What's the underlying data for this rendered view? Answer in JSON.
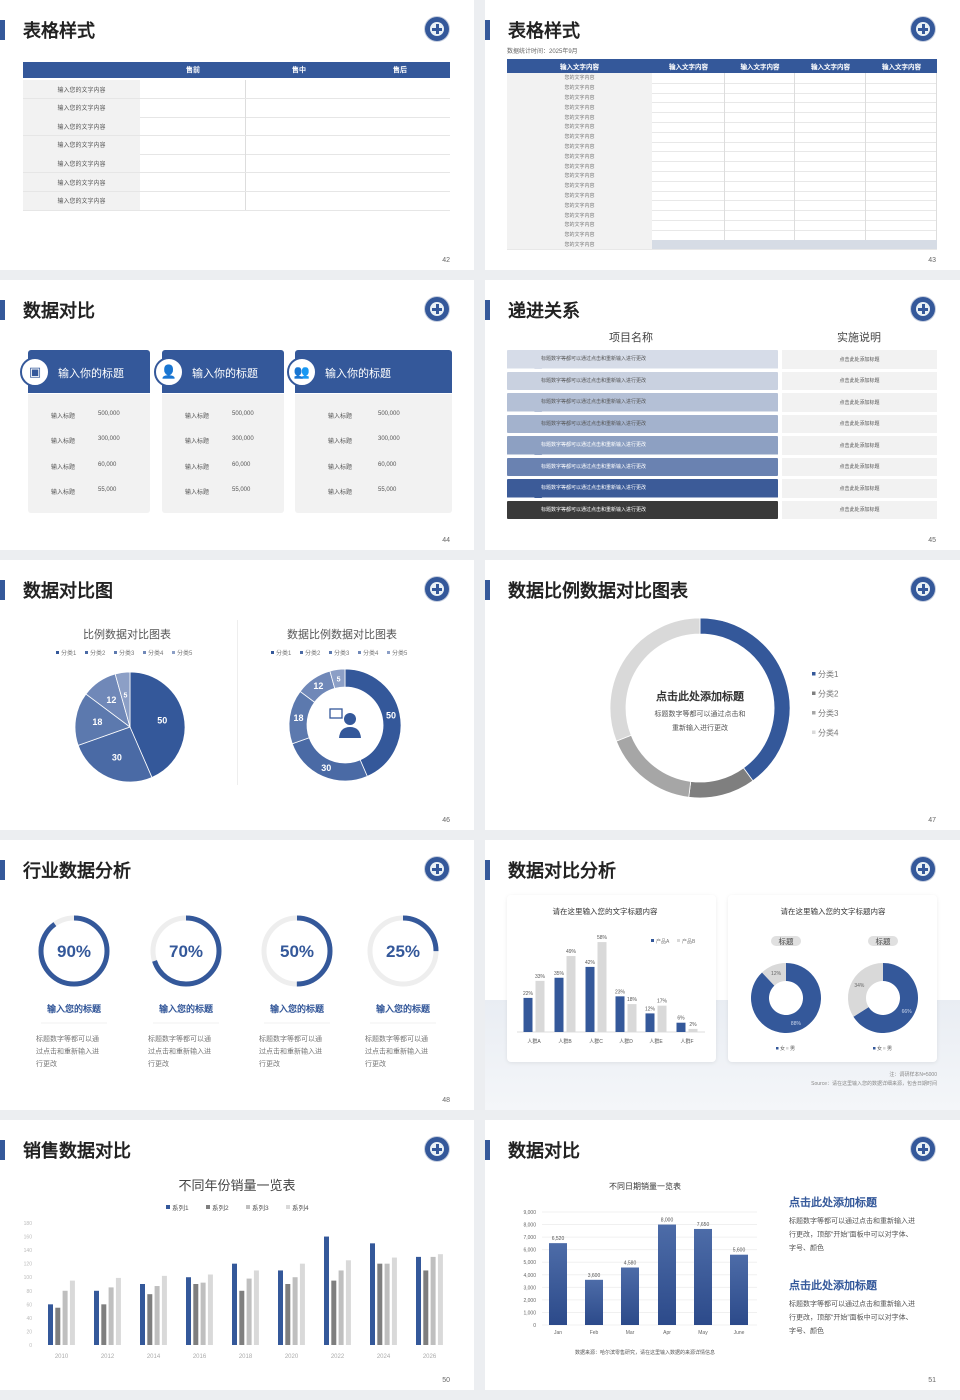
{
  "colors": {
    "primary": "#34589a",
    "dark": "#3a3a3a",
    "light_gray": "#f2f2f2",
    "highlight": "#d6dce5"
  },
  "s42": {
    "title": "表格样式",
    "page": "42",
    "headers": [
      "售前",
      "售中",
      "售后"
    ],
    "rows": [
      "输入您的文字内容",
      "输入您的文字内容",
      "输入您的文字内容",
      "输入您的文字内容",
      "输入您的文字内容",
      "输入您的文字内容",
      "输入您的文字内容"
    ]
  },
  "s43": {
    "title": "表格样式",
    "page": "43",
    "subtitle": "数据统计时间：2025年9月",
    "headers": [
      "输入文字内容",
      "输入文字内容",
      "输入文字内容",
      "输入文字内容",
      "输入文字内容"
    ],
    "rows": [
      "您的文字内容",
      "您的文字内容",
      "您的文字内容",
      "您的文字内容",
      "您的文字内容",
      "您的文字内容",
      "您的文字内容",
      "您的文字内容",
      "您的文字内容",
      "您的文字内容",
      "您的文字内容",
      "您的文字内容",
      "您的文字内容",
      "您的文字内容",
      "您的文字内容",
      "您的文字内容",
      "您的文字内容",
      "您的文字内容"
    ]
  },
  "s44": {
    "title": "数据对比",
    "page": "44",
    "cards": [
      {
        "title": "输入你的标题",
        "icon": "id-card-add-icon",
        "rows": [
          {
            "label": "输入标题",
            "value": "500,000"
          },
          {
            "label": "输入标题",
            "value": "300,000"
          },
          {
            "label": "输入标题",
            "value": "60,000"
          },
          {
            "label": "输入标题",
            "value": "55,000"
          }
        ]
      },
      {
        "title": "输入你的标题",
        "icon": "user-add-icon",
        "rows": [
          {
            "label": "输入标题",
            "value": "500,000"
          },
          {
            "label": "输入标题",
            "value": "300,000"
          },
          {
            "label": "输入标题",
            "value": "60,000"
          },
          {
            "label": "输入标题",
            "value": "55,000"
          }
        ]
      },
      {
        "title": "输入你的标题",
        "icon": "user-group-icon",
        "rows": [
          {
            "label": "输入标题",
            "value": "500,000"
          },
          {
            "label": "输入标题",
            "value": "300,000"
          },
          {
            "label": "输入标题",
            "value": "60,000"
          },
          {
            "label": "输入标题",
            "value": "55,000"
          }
        ]
      }
    ]
  },
  "s45": {
    "title": "递进关系",
    "page": "45",
    "col_headers": [
      "项目名称",
      "实施说明"
    ],
    "rows": [
      {
        "text": "标题数字等都可以通过点击和重新输入进行更改",
        "note": "点击此处添加标题",
        "color": "#d6dce8"
      },
      {
        "text": "标题数字等都可以通过点击和重新输入进行更改",
        "note": "点击此处添加标题",
        "color": "#c9d1e0"
      },
      {
        "text": "标题数字等都可以通过点击和重新输入进行更改",
        "note": "点击此处添加标题",
        "color": "#b4c0d6"
      },
      {
        "text": "标题数字等都可以通过点击和重新输入进行更改",
        "note": "点击此处添加标题",
        "color": "#a3b2cd"
      },
      {
        "text": "标题数字等都可以通过点击和重新输入进行更改",
        "note": "点击此处添加标题",
        "color": "#8da0c2"
      },
      {
        "text": "标题数字等都可以通过点击和重新输入进行更改",
        "note": "点击此处添加标题",
        "color": "#6a82b1"
      },
      {
        "text": "标题数字等都可以通过点击和重新输入进行更改",
        "note": "点击此处添加标题",
        "color": "#3c5b98"
      },
      {
        "text": "标题数字等都可以通过点击和重新输入进行更改",
        "note": "点击此处添加标题",
        "color": "#3a3a3a"
      }
    ]
  },
  "s46": {
    "title": "数据对比图",
    "page": "46",
    "center_icon": "customer-service-icon"
  },
  "s47": {
    "title": "数据比例数据对比图表",
    "page": "47",
    "center_title": "点击此处添加标题",
    "center_text": [
      "标题数字等都可以通过点击和",
      "重新输入进行更改"
    ]
  },
  "s48": {
    "title": "行业数据分析",
    "page": "48",
    "items": [
      {
        "percent": 90,
        "label": "90%",
        "title": "输入您的标题",
        "text": [
          "标题数字等都可以通",
          "过点击和重新输入进",
          "行更改"
        ]
      },
      {
        "percent": 70,
        "label": "70%",
        "title": "输入您的标题",
        "text": [
          "标题数字等都可以通",
          "过点击和重新输入进",
          "行更改"
        ]
      },
      {
        "percent": 50,
        "label": "50%",
        "title": "输入您的标题",
        "text": [
          "标题数字等都可以通",
          "过点击和重新输入进",
          "行更改"
        ]
      },
      {
        "percent": 25,
        "label": "25%",
        "title": "输入您的标题",
        "text": [
          "标题数字等都可以通",
          "过点击和重新输入进",
          "行更改"
        ]
      }
    ]
  },
  "s49": {
    "title": "数据对比分析",
    "page": "49",
    "note": "注：调研样本N=5000",
    "source": "Source：请在这里输入您的数据详细来源，包含日期时间"
  },
  "s50": {
    "title": "销售数据对比",
    "page": "50"
  },
  "s51": {
    "title": "数据对比",
    "page": "51",
    "source": "数据来源：哈尔滨零售研究，请在这里输入数据的来源详情信息",
    "blocks": [
      {
        "heading": "点击此处添加标题",
        "text": [
          "标题数字等都可以通过点击和重新输入进",
          "行更改，顶部“开始”面板中可以对字体、",
          "字号、颜色"
        ]
      },
      {
        "heading": "点击此处添加标题",
        "text": [
          "标题数字等都可以通过点击和重新输入进",
          "行更改，顶部“开始”面板中可以对字体、",
          "字号、颜色"
        ]
      }
    ]
  },
  "chart_data": [
    {
      "id": "pie46",
      "type": "pie",
      "title": "比例数据对比图表",
      "categories": [
        "分类1",
        "分类2",
        "分类3",
        "分类4",
        "分类5"
      ],
      "values": [
        50,
        30,
        18,
        12,
        5
      ],
      "colors": [
        "#34589a",
        "#4a6aa5",
        "#5c79ae",
        "#7088b8",
        "#8c9fc6"
      ],
      "legend": "top"
    },
    {
      "id": "donut46",
      "type": "pie",
      "title": "数据比例数据对比图表",
      "categories": [
        "分类1",
        "分类2",
        "分类3",
        "分类4",
        "分类5"
      ],
      "values": [
        50,
        30,
        18,
        12,
        5
      ],
      "colors": [
        "#34589a",
        "#4a6aa5",
        "#5c79ae",
        "#7088b8",
        "#8c9fc6"
      ],
      "legend": "top"
    },
    {
      "id": "donut47",
      "type": "pie",
      "categories": [
        "分类1",
        "分类2",
        "分类3",
        "分类4"
      ],
      "values": [
        40,
        12,
        17,
        31
      ],
      "colors": [
        "#34589a",
        "#7f7f7f",
        "#a6a6a6",
        "#d9d9d9"
      ],
      "legend": "right"
    },
    {
      "id": "bar49",
      "type": "bar",
      "title": "请在这里输入您的文字标题内容",
      "categories": [
        "人群A",
        "人群B",
        "人群C",
        "人群D",
        "人群E",
        "人群F"
      ],
      "series": [
        {
          "name": "产品A",
          "values": [
            22,
            35,
            42,
            23,
            12,
            6
          ],
          "color": "#34589a"
        },
        {
          "name": "产品B",
          "values": [
            33,
            49,
            58,
            18,
            17,
            2
          ],
          "color": "#d9d9d9"
        }
      ],
      "unit": "%",
      "legend": "top-right"
    },
    {
      "id": "donut49",
      "type": "pie",
      "title": "请在这里输入您的文字标题内容",
      "charts": [
        {
          "label": "标题",
          "categories": [
            "女",
            "男"
          ],
          "values": [
            88,
            12
          ]
        },
        {
          "label": "标题",
          "categories": [
            "女",
            "男"
          ],
          "values": [
            66,
            34
          ]
        }
      ],
      "colors": [
        "#34589a",
        "#d9d9d9"
      ]
    },
    {
      "id": "bar50",
      "type": "bar",
      "title": "不同年份销量一览表",
      "categories": [
        "2010",
        "2012",
        "2014",
        "2016",
        "2018",
        "2020",
        "2022",
        "2024",
        "2026"
      ],
      "series": [
        {
          "name": "系列1",
          "values": [
            60,
            80,
            90,
            100,
            120,
            110,
            160,
            150,
            130
          ],
          "color": "#34589a"
        },
        {
          "name": "系列2",
          "values": [
            55,
            60,
            75,
            90,
            80,
            90,
            95,
            120,
            110
          ],
          "color": "#7f7f7f"
        },
        {
          "name": "系列3",
          "values": [
            80,
            85,
            87,
            92,
            98,
            100,
            110,
            120,
            130
          ],
          "color": "#bfbfbf"
        },
        {
          "name": "系列4",
          "values": [
            95,
            99,
            102,
            104,
            110,
            120,
            125,
            129,
            134
          ],
          "color": "#d9d9d9"
        }
      ],
      "ylim": [
        0,
        180
      ],
      "yticks": [
        0,
        20,
        40,
        60,
        80,
        100,
        120,
        140,
        160,
        180
      ],
      "legend": "top"
    },
    {
      "id": "bar51",
      "type": "bar",
      "title": "不同日期销量一览表",
      "categories": [
        "Jan",
        "Feb",
        "Mar",
        "Apr",
        "May",
        "June"
      ],
      "values": [
        6520,
        3600,
        4580,
        8000,
        7650,
        5600
      ],
      "labels": [
        "6,520",
        "3,600",
        "4,580",
        "8,000",
        "7,650",
        "5,600"
      ],
      "ylim": [
        0,
        9000
      ],
      "yticks": [
        "0",
        "1,000",
        "2,000",
        "3,000",
        "4,000",
        "5,000",
        "6,000",
        "7,000",
        "8,000",
        "9,000"
      ],
      "grid": true
    }
  ]
}
